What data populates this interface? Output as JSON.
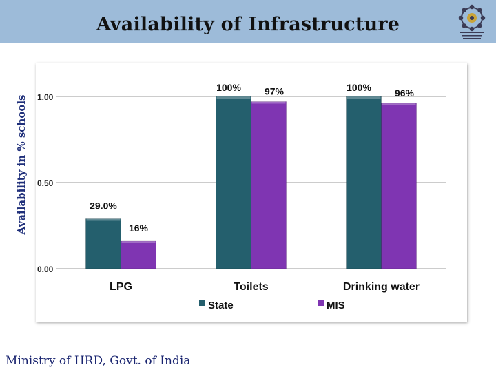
{
  "header": {
    "title": "Availability of Infrastructure",
    "logo_icon": "government-emblem-icon"
  },
  "footer": {
    "text": "Ministry of HRD, Govt. of India"
  },
  "colors": {
    "header_band": "#9dbbd9",
    "state": "#245f6d",
    "mis": "#7f35b2",
    "axis_title": "#1f2f7a"
  },
  "chart_data": {
    "type": "bar",
    "title": "",
    "xlabel": "",
    "ylabel": "Availability in % schools",
    "categories": [
      "LPG",
      "Toilets",
      "Drinking water"
    ],
    "ylim": [
      0,
      1
    ],
    "yticks": [
      {
        "value": 0,
        "label": "0.00"
      },
      {
        "value": 0.5,
        "label": "0.50"
      },
      {
        "value": 1,
        "label": "1.00"
      }
    ],
    "grid": true,
    "legend_position": "bottom",
    "series": [
      {
        "name": "State",
        "values": [
          0.29,
          1.0,
          1.0
        ],
        "labels": [
          "29.0%",
          "100%",
          "100%"
        ]
      },
      {
        "name": "MIS",
        "values": [
          0.16,
          0.97,
          0.96
        ],
        "labels": [
          "16%",
          "97%",
          "96%"
        ]
      }
    ]
  }
}
